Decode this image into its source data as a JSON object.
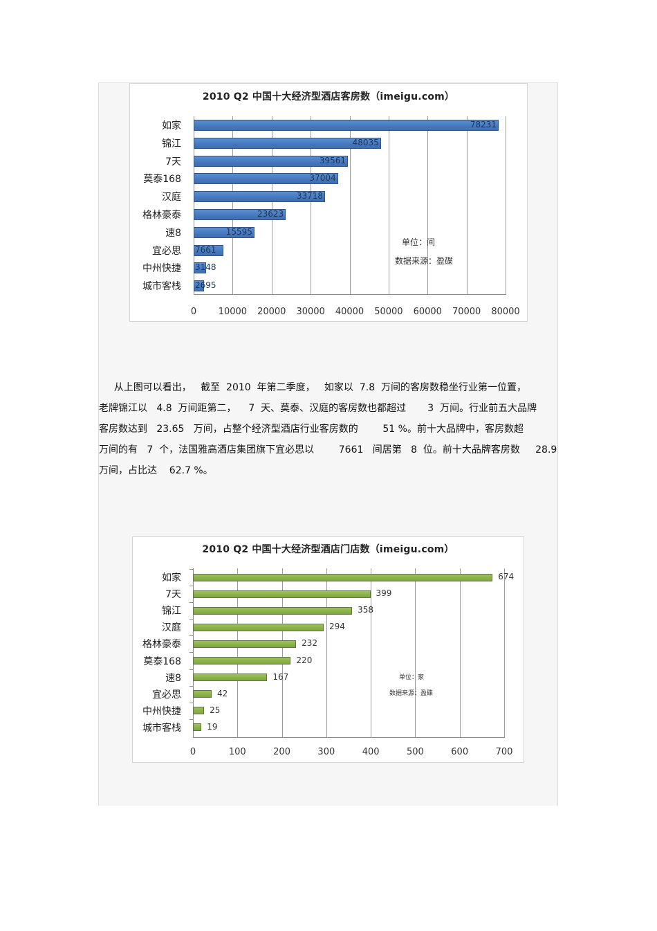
{
  "paragraph": {
    "lines": [
      "    从上图可以看出，   截至  2010  年第二季度，   如家以  7.8  万间的客房数稳坐行业第一位置，",
      "老牌锦江以   4.8  万间距第二，    7  天、莫泰、汉庭的客房数也都超过       3  万间。行业前五大品牌",
      "客房数达到   23.65   万间，占整个经济型酒店行业客房数的        51 %。前十大品牌中，客房数超",
      "万间的有   7  个，法国雅高酒店集团旗下宜必思以        7661   间居第   8  位。前十大品牌客房数     28.9",
      "万间，占比达    62.7 %。"
    ]
  },
  "chart_data": [
    {
      "type": "bar",
      "orientation": "horizontal",
      "title": "2010 Q2 中国十大经济型酒店客房数（imeigu.com）",
      "categories": [
        "如家",
        "锦江",
        "7天",
        "莫泰168",
        "汉庭",
        "格林豪泰",
        "速8",
        "宜必思",
        "中州快捷",
        "城市客栈"
      ],
      "values": [
        78231,
        48035,
        39561,
        37004,
        33718,
        23623,
        15595,
        7661,
        3148,
        2695
      ],
      "xlabel": "",
      "ylabel": "",
      "xlim": [
        0,
        80000
      ],
      "xticks": [
        0,
        10000,
        20000,
        30000,
        40000,
        50000,
        60000,
        70000,
        80000
      ],
      "grid": true,
      "color": "#4677bd",
      "annotations": [
        "单位：间",
        "数据来源：盈碟"
      ]
    },
    {
      "type": "bar",
      "orientation": "horizontal",
      "title": "2010 Q2 中国十大经济型酒店门店数（imeigu.com）",
      "categories": [
        "如家",
        "7天",
        "锦江",
        "汉庭",
        "格林豪泰",
        "莫泰168",
        "速8",
        "宜必思",
        "中州快捷",
        "城市客栈"
      ],
      "values": [
        674,
        399,
        358,
        294,
        232,
        220,
        167,
        42,
        25,
        19
      ],
      "xlabel": "",
      "ylabel": "",
      "xlim": [
        0,
        700
      ],
      "xticks": [
        0,
        100,
        200,
        300,
        400,
        500,
        600,
        700
      ],
      "grid": true,
      "color": "#8ab04a",
      "annotations": [
        "单位：家",
        "数据来源：盈碟"
      ]
    }
  ],
  "colors": {
    "panel_bg": "#f6f6f6",
    "bar_blue": "#4677bd",
    "bar_green": "#8ab04a"
  }
}
